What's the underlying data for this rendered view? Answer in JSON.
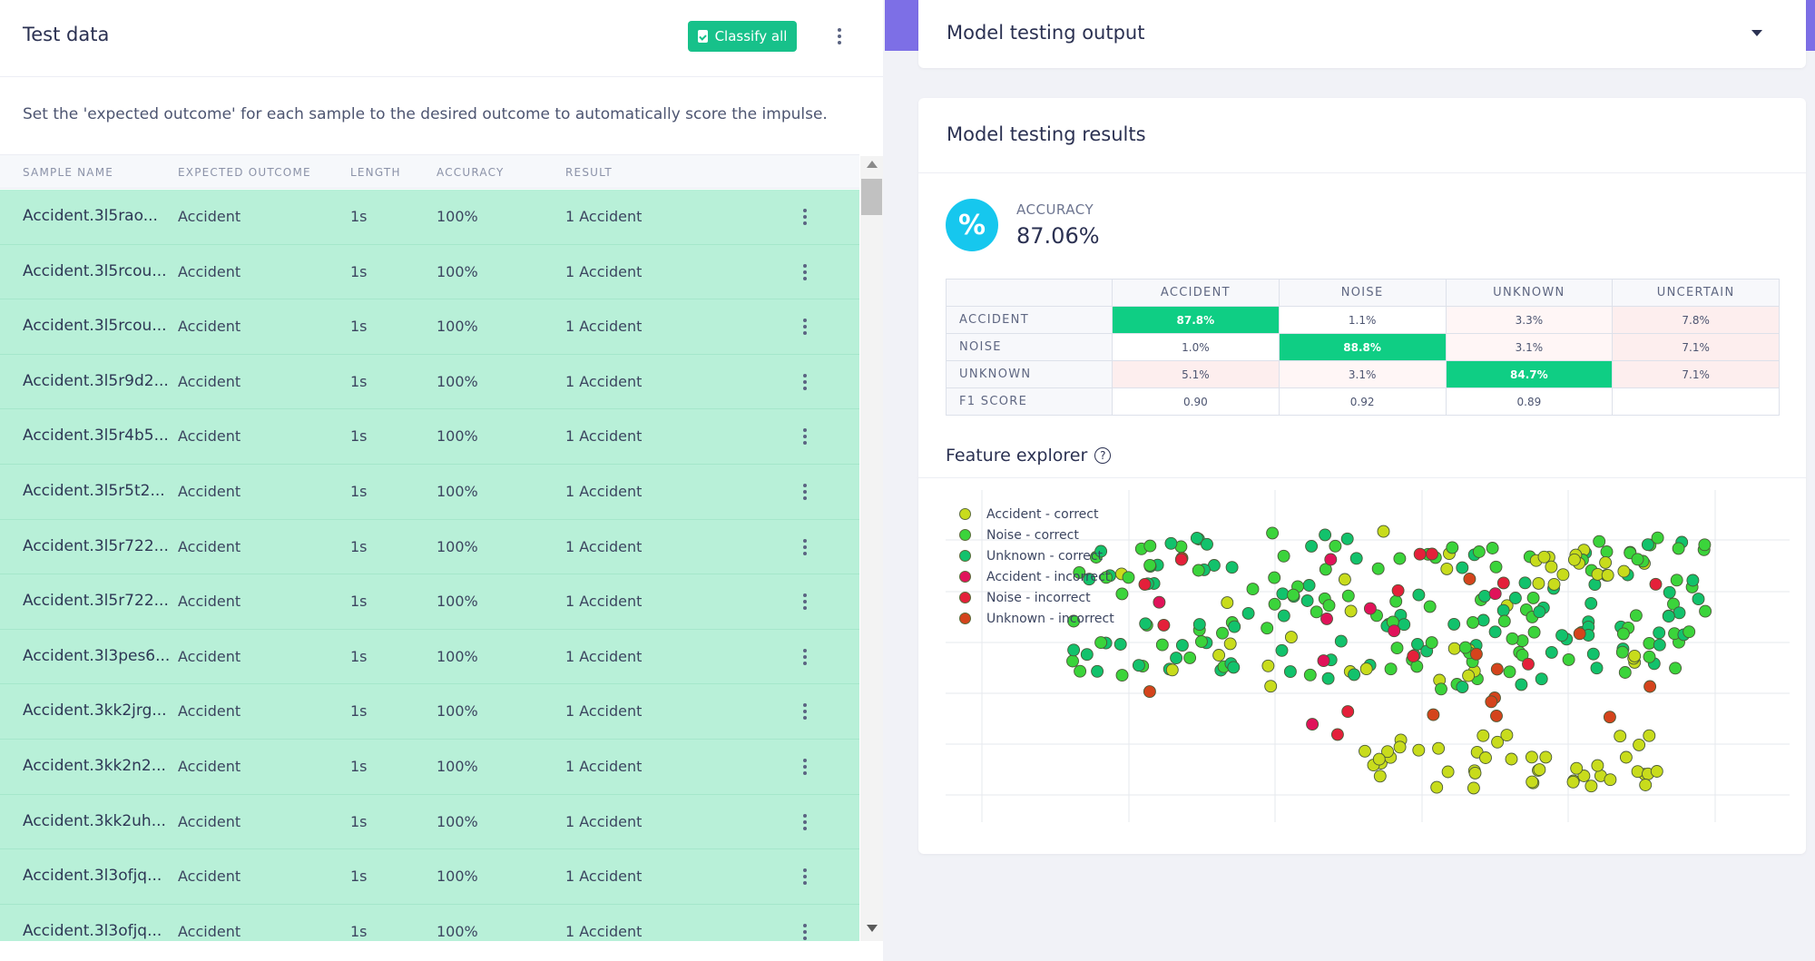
{
  "left": {
    "title": "Test data",
    "classify_label": "Classify all",
    "description": "Set the 'expected outcome' for each sample to the desired outcome to automatically score the impulse.",
    "columns": [
      "SAMPLE NAME",
      "EXPECTED OUTCOME",
      "LENGTH",
      "ACCURACY",
      "RESULT"
    ],
    "rows": [
      {
        "name": "Accident.3l5rao...",
        "expected": "Accident",
        "length": "1s",
        "accuracy": "100%",
        "result": "1 Accident"
      },
      {
        "name": "Accident.3l5rcou...",
        "expected": "Accident",
        "length": "1s",
        "accuracy": "100%",
        "result": "1 Accident"
      },
      {
        "name": "Accident.3l5rcou...",
        "expected": "Accident",
        "length": "1s",
        "accuracy": "100%",
        "result": "1 Accident"
      },
      {
        "name": "Accident.3l5r9d2...",
        "expected": "Accident",
        "length": "1s",
        "accuracy": "100%",
        "result": "1 Accident"
      },
      {
        "name": "Accident.3l5r4b5...",
        "expected": "Accident",
        "length": "1s",
        "accuracy": "100%",
        "result": "1 Accident"
      },
      {
        "name": "Accident.3l5r5t2...",
        "expected": "Accident",
        "length": "1s",
        "accuracy": "100%",
        "result": "1 Accident"
      },
      {
        "name": "Accident.3l5r722...",
        "expected": "Accident",
        "length": "1s",
        "accuracy": "100%",
        "result": "1 Accident"
      },
      {
        "name": "Accident.3l5r722...",
        "expected": "Accident",
        "length": "1s",
        "accuracy": "100%",
        "result": "1 Accident"
      },
      {
        "name": "Accident.3l3pes6...",
        "expected": "Accident",
        "length": "1s",
        "accuracy": "100%",
        "result": "1 Accident"
      },
      {
        "name": "Accident.3kk2jrg...",
        "expected": "Accident",
        "length": "1s",
        "accuracy": "100%",
        "result": "1 Accident"
      },
      {
        "name": "Accident.3kk2n2...",
        "expected": "Accident",
        "length": "1s",
        "accuracy": "100%",
        "result": "1 Accident"
      },
      {
        "name": "Accident.3kk2uh...",
        "expected": "Accident",
        "length": "1s",
        "accuracy": "100%",
        "result": "1 Accident"
      },
      {
        "name": "Accident.3l3ofjq...",
        "expected": "Accident",
        "length": "1s",
        "accuracy": "100%",
        "result": "1 Accident"
      },
      {
        "name": "Accident.3l3ofjq...",
        "expected": "Accident",
        "length": "1s",
        "accuracy": "100%",
        "result": "1 Accident"
      }
    ]
  },
  "output": {
    "title": "Model testing output"
  },
  "results": {
    "title": "Model testing results",
    "accuracy_label": "ACCURACY",
    "accuracy_value": "87.06%",
    "accuracy_icon": "%",
    "matrix": {
      "columns": [
        "ACCIDENT",
        "NOISE",
        "UNKNOWN",
        "UNCERTAIN"
      ],
      "rows": [
        {
          "label": "ACCIDENT",
          "cells": [
            "87.8%",
            "1.1%",
            "3.3%",
            "7.8%"
          ]
        },
        {
          "label": "NOISE",
          "cells": [
            "1.0%",
            "88.8%",
            "3.1%",
            "7.1%"
          ]
        },
        {
          "label": "UNKNOWN",
          "cells": [
            "5.1%",
            "3.1%",
            "84.7%",
            "7.1%"
          ]
        },
        {
          "label": "F1 SCORE",
          "cells": [
            "0.90",
            "0.92",
            "0.89",
            ""
          ]
        }
      ]
    },
    "feature_explorer_title": "Feature explorer",
    "help_glyph": "?",
    "legend": [
      {
        "label": "Accident - correct",
        "color": "#c8dc1c"
      },
      {
        "label": "Noise - correct",
        "color": "#3bd43b"
      },
      {
        "label": "Unknown - correct",
        "color": "#12c26c"
      },
      {
        "label": "Accident - incorrect",
        "color": "#e0135a"
      },
      {
        "label": "Noise - incorrect",
        "color": "#e4203a"
      },
      {
        "label": "Unknown - incorrect",
        "color": "#d4441c"
      }
    ]
  },
  "colors": {
    "accent": "#17c18a",
    "row_bg": "#b8f0d8",
    "purple": "#7d6fe6",
    "accuracy_icon": "#16c7ee",
    "matrix_diag": "#0fce84"
  },
  "icons": [
    "clipboard-icon",
    "kebab-menu-icon",
    "chevron-down-icon",
    "percent-icon",
    "help-circle-icon",
    "scroll-up-arrow-icon",
    "scroll-down-arrow-icon"
  ]
}
